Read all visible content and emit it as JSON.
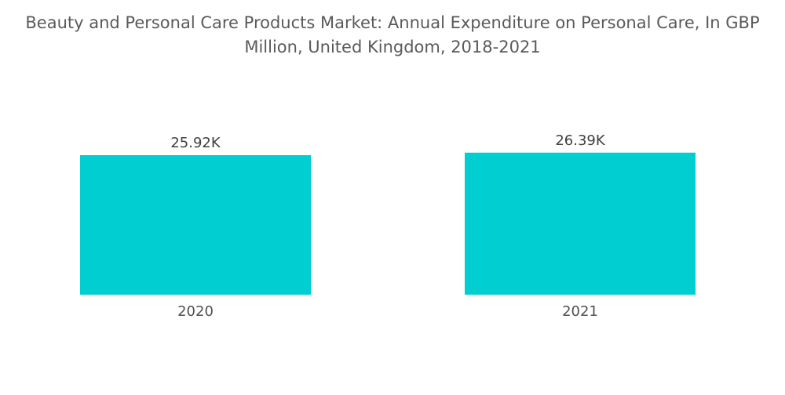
{
  "chart_data": {
    "type": "bar",
    "title": "Beauty and Personal Care Products Market: Annual Expenditure on Personal Care, In GBP Million, United Kingdom, 2018-2021",
    "categories": [
      "2020",
      "2021"
    ],
    "values": [
      25920,
      26390
    ],
    "value_labels": [
      "25.92K",
      "26.39K"
    ],
    "xlabel": "",
    "ylabel": "",
    "grid": false,
    "bar_color": "#00CED1"
  }
}
